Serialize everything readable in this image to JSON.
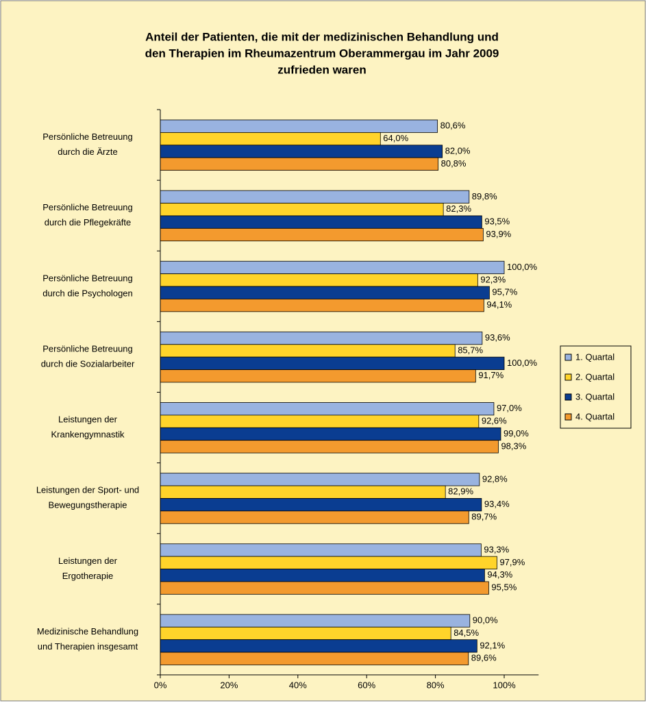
{
  "chart_data": {
    "type": "hbar",
    "title": [
      "Anteil der Patienten, die mit der medizinischen Behandlung und",
      "den Therapien im Rheumazentrum Oberammergau im Jahr 2009",
      "zufrieden waren"
    ],
    "categories": [
      [
        "Persönliche Betreuung",
        "durch die Ärzte"
      ],
      [
        "Persönliche Betreuung",
        "durch die Pflegekräfte"
      ],
      [
        "Persönliche Betreuung",
        "durch die Psychologen"
      ],
      [
        "Persönliche Betreuung",
        "durch die Sozialarbeiter"
      ],
      [
        "Leistungen der",
        "Krankengymnastik"
      ],
      [
        "Leistungen der Sport- und",
        "Bewegungstherapie"
      ],
      [
        "Leistungen der",
        "Ergotherapie"
      ],
      [
        "Medizinische Behandlung",
        "und Therapien insgesamt"
      ]
    ],
    "series": [
      {
        "name": "1. Quartal",
        "color": "#99b3e0",
        "values": [
          80.6,
          89.8,
          100.0,
          93.6,
          97.0,
          92.8,
          93.3,
          90.0
        ],
        "value_labels": [
          "80,6%",
          "89,8%",
          "100,0%",
          "93,6%",
          "97,0%",
          "92,8%",
          "93,3%",
          "90,0%"
        ]
      },
      {
        "name": "2. Quartal",
        "color": "#ffd42a",
        "values": [
          64.0,
          82.3,
          92.3,
          85.7,
          92.6,
          82.9,
          97.9,
          84.5
        ],
        "value_labels": [
          "64,0%",
          "82,3%",
          "92,3%",
          "85,7%",
          "92,6%",
          "82,9%",
          "97,9%",
          "84,5%"
        ]
      },
      {
        "name": "3. Quartal",
        "color": "#0a3d91",
        "values": [
          82.0,
          93.5,
          95.7,
          100.0,
          99.0,
          93.4,
          94.3,
          92.1
        ],
        "value_labels": [
          "82,0%",
          "93,5%",
          "95,7%",
          "100,0%",
          "99,0%",
          "93,4%",
          "94,3%",
          "92,1%"
        ]
      },
      {
        "name": "4. Quartal",
        "color": "#f39a2e",
        "values": [
          80.8,
          93.9,
          94.1,
          91.7,
          98.3,
          89.7,
          95.5,
          89.6
        ],
        "value_labels": [
          "80,8%",
          "93,9%",
          "94,1%",
          "91,7%",
          "98,3%",
          "89,7%",
          "95,5%",
          "89,6%"
        ]
      }
    ],
    "xlim": [
      0,
      110
    ],
    "xticks": [
      {
        "value": 0,
        "label": "0%"
      },
      {
        "value": 20,
        "label": "20%"
      },
      {
        "value": 40,
        "label": "40%"
      },
      {
        "value": 60,
        "label": "60%"
      },
      {
        "value": 80,
        "label": "80%"
      },
      {
        "value": 100,
        "label": "100%"
      }
    ],
    "legend": "right"
  }
}
